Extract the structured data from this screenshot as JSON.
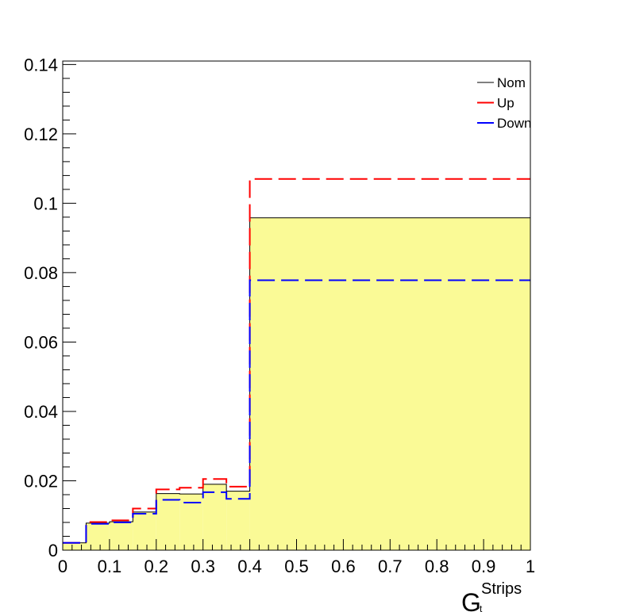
{
  "chart_data": {
    "type": "histogram",
    "title": "",
    "xlabel": "G",
    "xlabel_superscript": "Strips",
    "xlabel_subscript": "t",
    "ylabel": "",
    "xlim": [
      0,
      1
    ],
    "ylim": [
      0,
      0.141
    ],
    "x_ticks": [
      "0",
      "0.1",
      "0.2",
      "0.3",
      "0.4",
      "0.5",
      "0.6",
      "0.7",
      "0.8",
      "0.9",
      "1"
    ],
    "y_ticks": [
      "0",
      "0.02",
      "0.04",
      "0.06",
      "0.08",
      "0.1",
      "0.12",
      "0.14"
    ],
    "legend_position": "top-right",
    "bin_edges": [
      0,
      0.05,
      0.1,
      0.15,
      0.2,
      0.25,
      0.3,
      0.35,
      0.4,
      1.0
    ],
    "series": [
      {
        "name": "Nom",
        "color": "#000000",
        "fill": "#fafa96",
        "style": "solid",
        "values": [
          0.0021,
          0.0078,
          0.0082,
          0.011,
          0.0163,
          0.0162,
          0.019,
          0.017,
          0.0958
        ]
      },
      {
        "name": "Up",
        "color": "#ff0000",
        "style": "dashed",
        "values": [
          0.0021,
          0.0081,
          0.0086,
          0.012,
          0.0175,
          0.018,
          0.0205,
          0.0183,
          0.107
        ]
      },
      {
        "name": "Down",
        "color": "#0000ff",
        "style": "dashed",
        "values": [
          0.0021,
          0.0076,
          0.008,
          0.0105,
          0.0145,
          0.0137,
          0.0167,
          0.0148,
          0.0778
        ]
      }
    ]
  }
}
